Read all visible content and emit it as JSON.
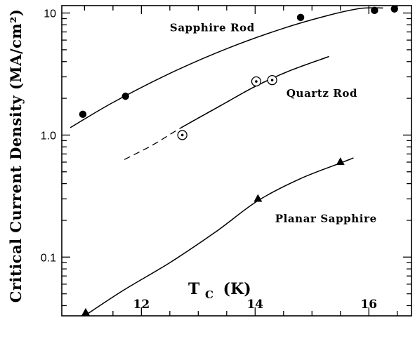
{
  "chart_data": {
    "type": "scatter",
    "xlabel_main": "T",
    "xlabel_sub": "C",
    "xlabel_unit": "(K)",
    "ylabel": "Critical Current Density (MA/cm²)",
    "y_scale": "log",
    "xlim": [
      10.6,
      16.75
    ],
    "ylim": [
      0.033,
      11.5
    ],
    "x_ticks": [
      {
        "value": 12,
        "label": "12"
      },
      {
        "value": 14,
        "label": "14"
      },
      {
        "value": 16,
        "label": "16"
      }
    ],
    "y_ticks": [
      {
        "value": 10,
        "label": "10"
      },
      {
        "value": 1,
        "label": "1.0"
      },
      {
        "value": 0.1,
        "label": "0.1"
      }
    ],
    "series": [
      {
        "name": "Sapphire Rod",
        "marker": "filled-circle",
        "points": [
          [
            10.97,
            1.48
          ],
          [
            11.72,
            2.08
          ],
          [
            14.8,
            9.2
          ],
          [
            16.1,
            10.5
          ],
          [
            16.45,
            10.8
          ]
        ],
        "fit_curve": [
          [
            10.75,
            1.15
          ],
          [
            11.5,
            1.85
          ],
          [
            12.5,
            3.2
          ],
          [
            13.5,
            5.1
          ],
          [
            14.5,
            7.5
          ],
          [
            15.3,
            9.6
          ],
          [
            15.85,
            10.9
          ],
          [
            16.25,
            11.0
          ]
        ],
        "fit_style": "solid"
      },
      {
        "name": "Quartz Rod",
        "marker": "dotted-circle",
        "points": [
          [
            12.72,
            1.0
          ],
          [
            14.02,
            2.75
          ],
          [
            14.3,
            2.82
          ]
        ],
        "fit_curve": [
          [
            12.7,
            1.15
          ],
          [
            13.4,
            1.75
          ],
          [
            14.0,
            2.5
          ],
          [
            14.6,
            3.35
          ],
          [
            15.3,
            4.4
          ]
        ],
        "fit_style": "solid",
        "extrapolation_curve": [
          [
            11.7,
            0.63
          ],
          [
            12.2,
            0.83
          ],
          [
            12.7,
            1.15
          ],
          [
            13.4,
            1.75
          ],
          [
            14.0,
            2.5
          ],
          [
            14.6,
            3.35
          ],
          [
            15.3,
            4.4
          ]
        ],
        "extrapolation_style": "dashed"
      },
      {
        "name": "Planar Sapphire",
        "marker": "filled-triangle",
        "points": [
          [
            11.02,
            0.035
          ],
          [
            14.05,
            0.3
          ],
          [
            15.5,
            0.6
          ]
        ],
        "fit_curve": [
          [
            11.0,
            0.033
          ],
          [
            11.7,
            0.054
          ],
          [
            12.5,
            0.09
          ],
          [
            13.3,
            0.16
          ],
          [
            14.05,
            0.29
          ],
          [
            14.8,
            0.44
          ],
          [
            15.5,
            0.59
          ],
          [
            15.73,
            0.65
          ]
        ],
        "fit_style": "solid"
      }
    ]
  }
}
